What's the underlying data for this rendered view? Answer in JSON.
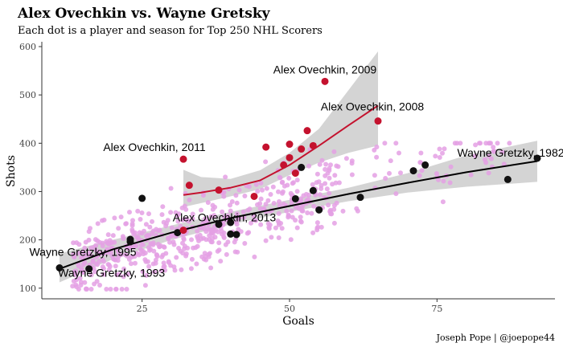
{
  "chart_data": {
    "type": "scatter",
    "title": "Alex Ovechkin vs. Wayne Gretsky",
    "subtitle": "Each dot is a player and season for Top 250 NHL Scorers",
    "xlabel": "Goals",
    "ylabel": "Shots",
    "caption": "Joseph Pope | @joepope44",
    "xlim": [
      8,
      95
    ],
    "ylim": [
      78,
      610
    ],
    "x_ticks": [
      25,
      50,
      75
    ],
    "y_ticks": [
      100,
      200,
      300,
      400,
      500,
      600
    ],
    "grid": false,
    "colors": {
      "background_points": "#e4a0e4",
      "ovechkin": "#c4122e",
      "gretzky": "#111111",
      "band": "#cccccc"
    },
    "ovechkin_points": [
      {
        "x": 32,
        "y": 367
      },
      {
        "x": 33,
        "y": 313
      },
      {
        "x": 38,
        "y": 303
      },
      {
        "x": 32,
        "y": 220
      },
      {
        "x": 44,
        "y": 290
      },
      {
        "x": 46,
        "y": 392
      },
      {
        "x": 49,
        "y": 355
      },
      {
        "x": 50,
        "y": 398
      },
      {
        "x": 50,
        "y": 370
      },
      {
        "x": 51,
        "y": 338
      },
      {
        "x": 52,
        "y": 388
      },
      {
        "x": 53,
        "y": 426
      },
      {
        "x": 54,
        "y": 395
      },
      {
        "x": 56,
        "y": 528
      },
      {
        "x": 65,
        "y": 446
      }
    ],
    "gretzky_points": [
      {
        "x": 11,
        "y": 142
      },
      {
        "x": 16,
        "y": 140
      },
      {
        "x": 23,
        "y": 196
      },
      {
        "x": 23,
        "y": 201
      },
      {
        "x": 25,
        "y": 286
      },
      {
        "x": 31,
        "y": 215
      },
      {
        "x": 38,
        "y": 232
      },
      {
        "x": 40,
        "y": 236
      },
      {
        "x": 40,
        "y": 212
      },
      {
        "x": 41,
        "y": 211
      },
      {
        "x": 51,
        "y": 285
      },
      {
        "x": 52,
        "y": 350
      },
      {
        "x": 54,
        "y": 302
      },
      {
        "x": 55,
        "y": 262
      },
      {
        "x": 62,
        "y": 288
      },
      {
        "x": 71,
        "y": 343
      },
      {
        "x": 73,
        "y": 355
      },
      {
        "x": 87,
        "y": 325
      },
      {
        "x": 92,
        "y": 369
      }
    ],
    "ovechkin_trend": {
      "x": [
        32,
        35,
        40,
        45,
        50,
        55,
        60,
        65
      ],
      "y": [
        293,
        298,
        308,
        323,
        355,
        395,
        437,
        478
      ],
      "lower": [
        268,
        276,
        290,
        305,
        334,
        360,
        380,
        395
      ],
      "upper": [
        345,
        330,
        326,
        344,
        380,
        430,
        510,
        590
      ]
    },
    "gretzky_trend": {
      "x": [
        11,
        20,
        30,
        40,
        50,
        60,
        70,
        80,
        92
      ],
      "y": [
        140,
        180,
        215,
        245,
        270,
        295,
        318,
        340,
        363
      ],
      "lower": [
        112,
        160,
        200,
        232,
        258,
        280,
        298,
        310,
        320
      ],
      "upper": [
        172,
        200,
        230,
        258,
        283,
        308,
        338,
        375,
        405
      ]
    },
    "annotations": [
      {
        "text": "Alex Ovechkin, 2009",
        "x": 56,
        "y": 528
      },
      {
        "text": "Alex Ovechkin, 2008",
        "x": 65,
        "y": 446
      },
      {
        "text": "Alex Ovechkin, 2011",
        "x": 32,
        "y": 367
      },
      {
        "text": "Wayne Gretzky, 1982",
        "x": 92,
        "y": 369
      },
      {
        "text": "Alex Ovechkin, 2013",
        "x": 32,
        "y": 220
      },
      {
        "text": "Wayne Gretzky, 1995",
        "x": 11,
        "y": 142
      },
      {
        "text": "Wayne Gretzky, 1993",
        "x": 16,
        "y": 140
      }
    ]
  }
}
